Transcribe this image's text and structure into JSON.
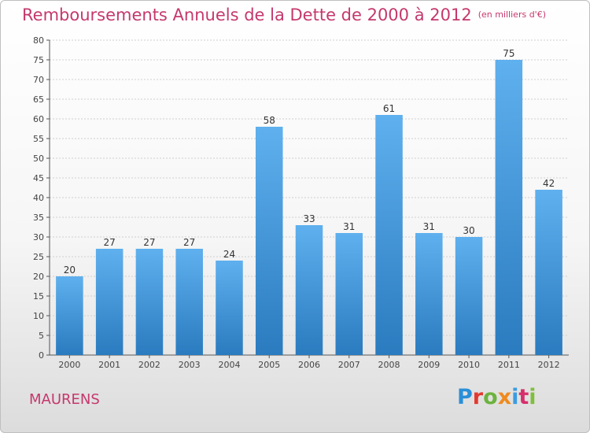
{
  "header": {
    "title": "Remboursements Annuels de la Dette de 2000 à 2012",
    "unit": "(en milliers d'€)"
  },
  "footer": {
    "place": "MAURENS",
    "logo_letters": [
      "P",
      "r",
      "o",
      "x",
      "i",
      "t",
      "i"
    ],
    "logo_colors": [
      "#2a8fd8",
      "#e23a2f",
      "#6cb33e",
      "#f08a1d",
      "#3b9be0",
      "#d62f6b",
      "#7fbf3c"
    ]
  },
  "colors": {
    "title": "#c5386d",
    "bar_top": "#5fb0ee",
    "bar_bottom": "#2a7bbf",
    "grid": "#cfcfcf"
  },
  "chart_data": {
    "type": "bar",
    "title": "Remboursements Annuels de la Dette de 2000 à 2012",
    "subtitle": "(en milliers d'€)",
    "xlabel": "",
    "ylabel": "",
    "categories": [
      "2000",
      "2001",
      "2002",
      "2003",
      "2004",
      "2005",
      "2006",
      "2007",
      "2008",
      "2009",
      "2010",
      "2011",
      "2012"
    ],
    "values": [
      20,
      27,
      27,
      27,
      24,
      58,
      33,
      31,
      61,
      31,
      30,
      75,
      42
    ],
    "ylim": [
      0,
      80
    ],
    "yticks": [
      0,
      5,
      10,
      15,
      20,
      25,
      30,
      35,
      40,
      45,
      50,
      55,
      60,
      65,
      70,
      75,
      80
    ],
    "grid": true,
    "data_labels": true
  }
}
